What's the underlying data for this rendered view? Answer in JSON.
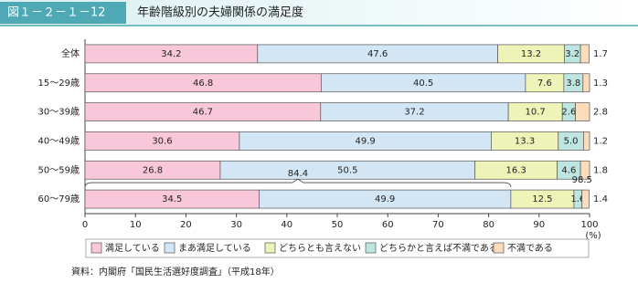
{
  "header": {
    "figure_number": "図１－２－１－12",
    "title": "年齢階級別の夫婦関係の満足度"
  },
  "chart_data": {
    "type": "stacked-barh",
    "categories": [
      "全体",
      "15～29歳",
      "30～39歳",
      "40～49歳",
      "50～59歳",
      "60～79歳"
    ],
    "series": [
      {
        "name": "満足している",
        "color": "#f8c8da",
        "values": [
          34.2,
          46.8,
          46.7,
          30.6,
          26.8,
          34.5
        ],
        "value_labels": [
          "34.2",
          "46.8",
          "46.7",
          "30.6",
          "26.8",
          "34.5"
        ]
      },
      {
        "name": "まあ満足している",
        "color": "#d3e6f6",
        "values": [
          47.6,
          40.5,
          37.2,
          49.9,
          50.5,
          49.9
        ],
        "value_labels": [
          "47.6",
          "40.5",
          "37.2",
          "49.9",
          "50.5",
          "49.9"
        ]
      },
      {
        "name": "どちらとも言えない",
        "color": "#eef3b8",
        "values": [
          13.2,
          7.6,
          10.7,
          13.3,
          16.3,
          12.5
        ],
        "value_labels": [
          "13.2",
          "7.6",
          "10.7",
          "13.3",
          "16.3",
          "12.5"
        ]
      },
      {
        "name": "どちらかと言えば不満である",
        "color": "#bfe5e1",
        "values": [
          3.2,
          3.8,
          2.6,
          5.0,
          4.6,
          1.6
        ],
        "value_labels": [
          "3.2",
          "3.8",
          "2.6",
          "5.0",
          "4.6",
          "1.6"
        ]
      },
      {
        "name": "不満である",
        "color": "#fddcbc",
        "values": [
          1.7,
          1.3,
          2.8,
          1.2,
          1.8,
          1.4
        ],
        "value_labels": [
          "1.7",
          "1.3",
          "2.8",
          "1.2",
          "1.8",
          "1.4"
        ]
      }
    ],
    "xlim": [
      0,
      100
    ],
    "xticks": [
      0,
      10,
      20,
      30,
      40,
      50,
      60,
      70,
      80,
      90,
      100
    ],
    "xlabel": "(%)",
    "grid": false,
    "annotations": [
      "84.4",
      "98.5"
    ]
  },
  "source": "資料：内閣府「国民生活選好度調査」（平成18年）"
}
